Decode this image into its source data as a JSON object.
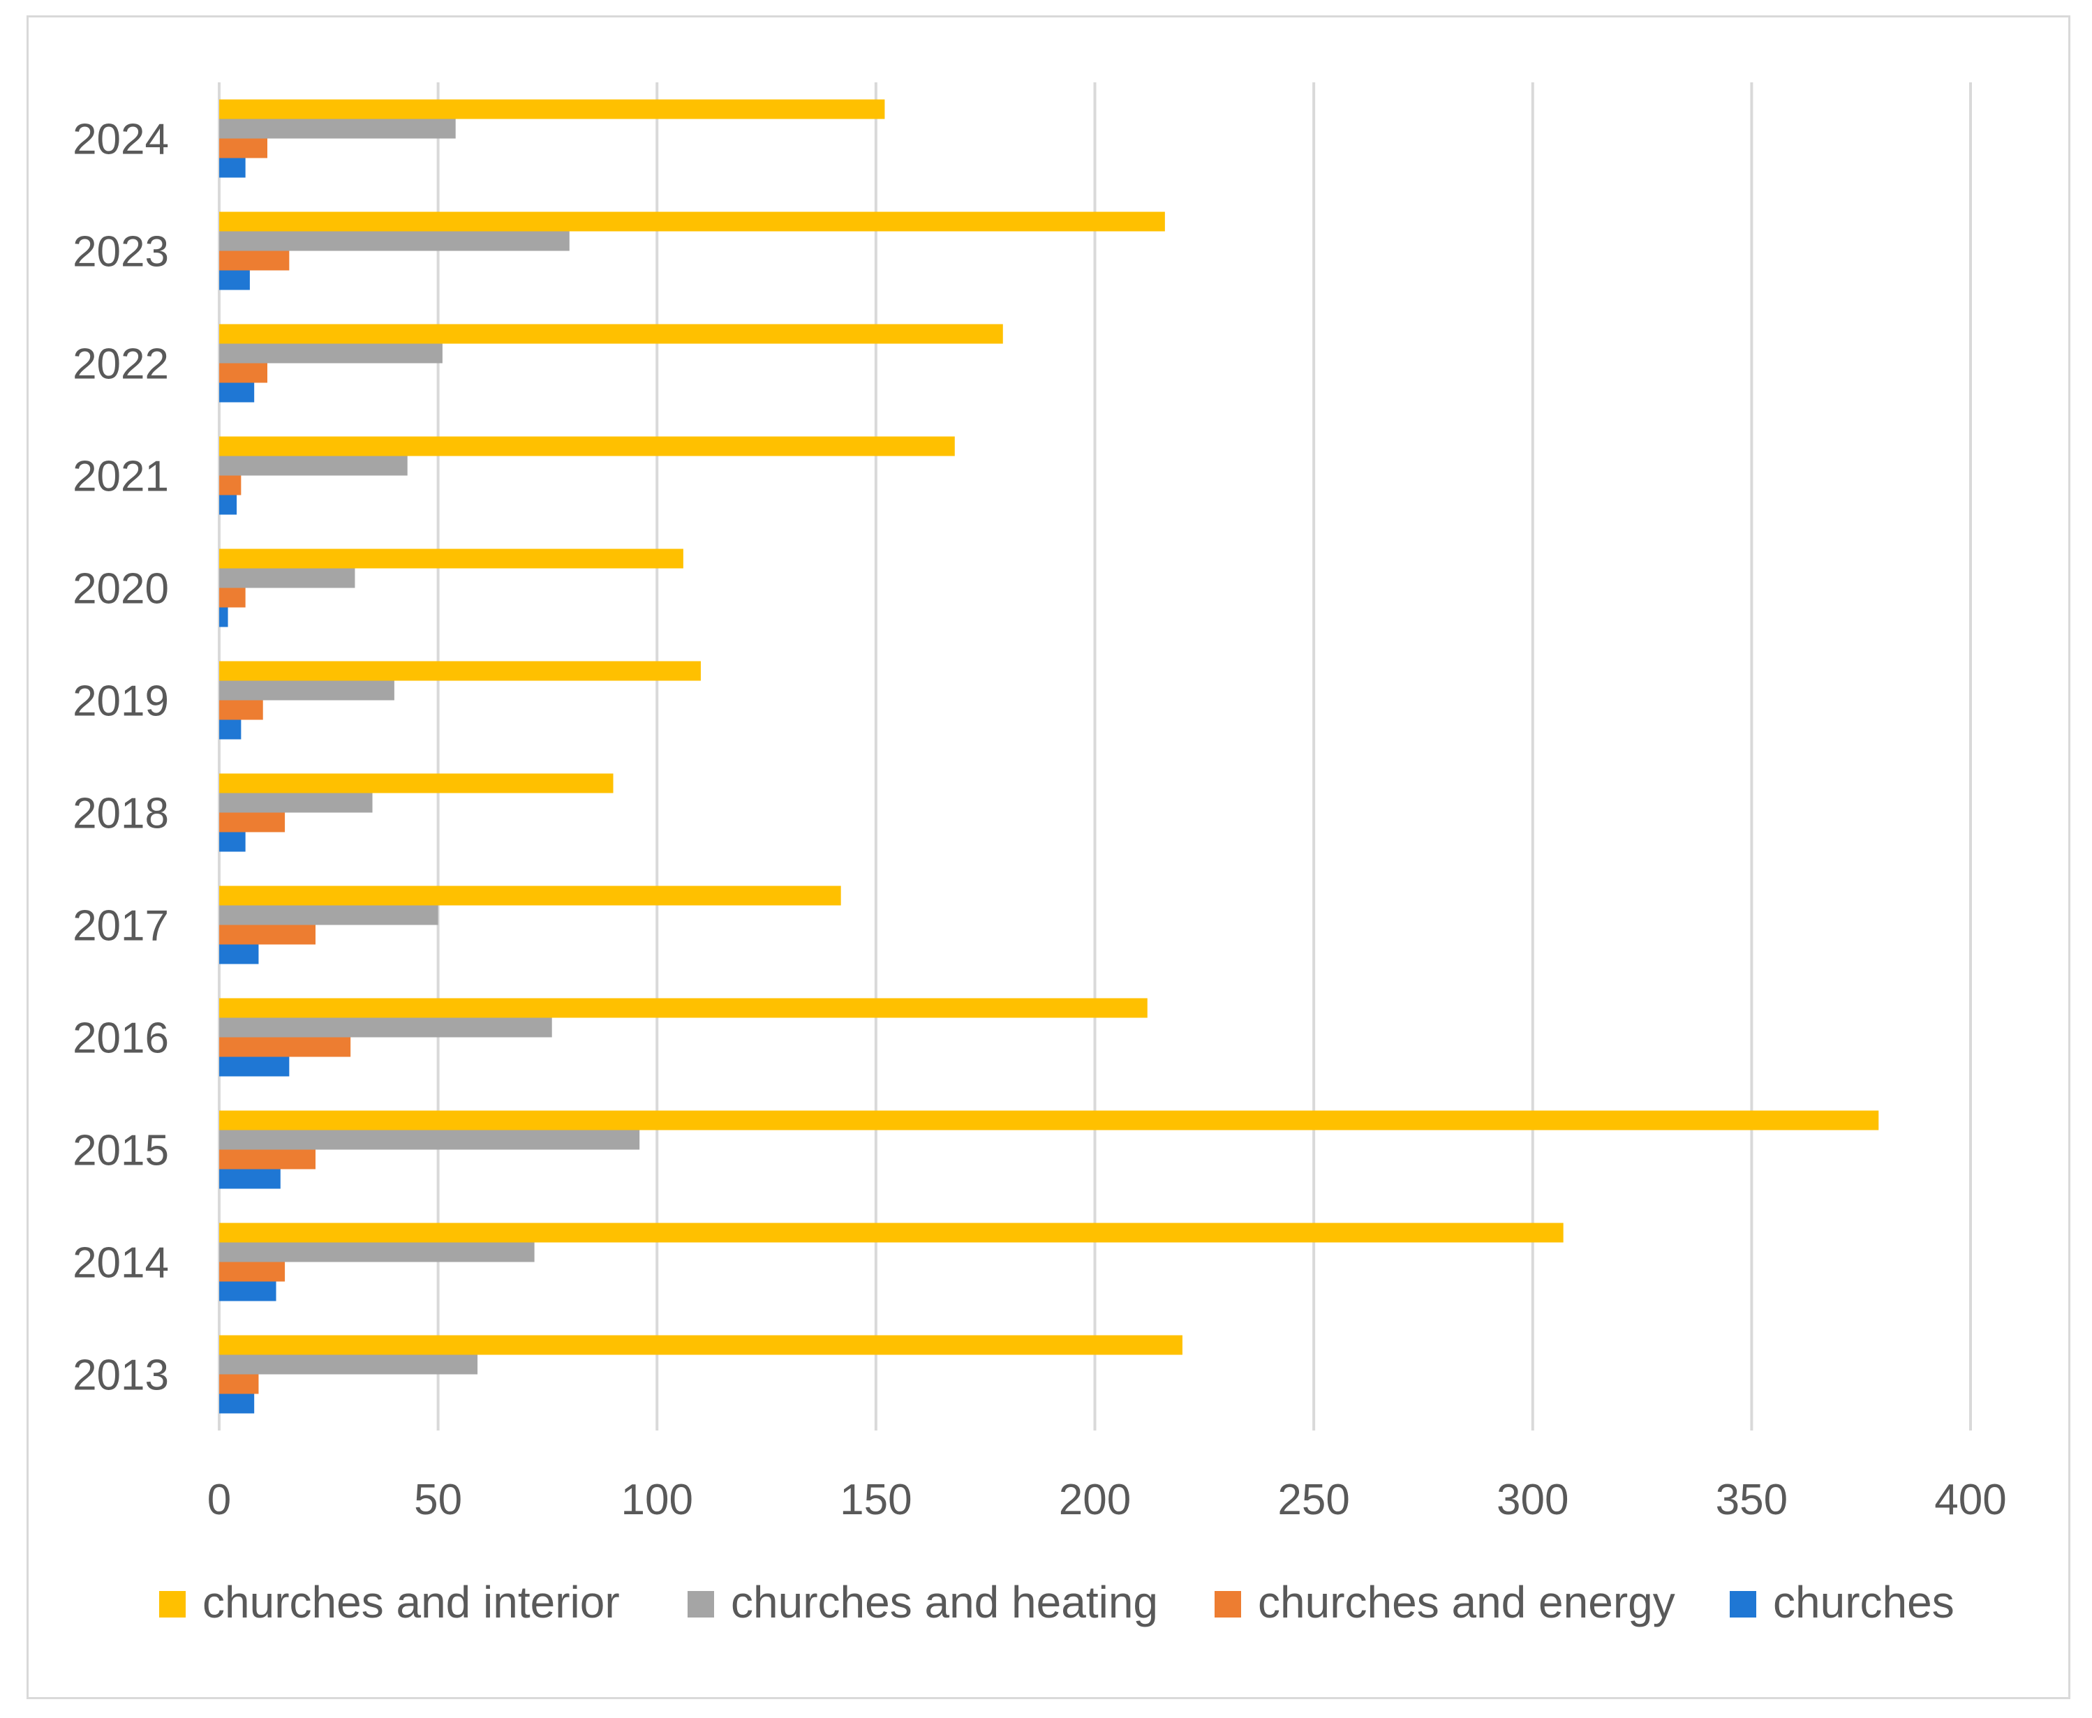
{
  "chart_data": {
    "type": "bar",
    "orientation": "horizontal",
    "title": "",
    "xlabel": "",
    "ylabel": "",
    "xlim": [
      0,
      400
    ],
    "x_ticks": [
      "0",
      "50",
      "100",
      "150",
      "200",
      "250",
      "300",
      "350",
      "400"
    ],
    "grid": true,
    "legend_position": "bottom",
    "categories": [
      "2013",
      "2014",
      "2015",
      "2016",
      "2017",
      "2018",
      "2019",
      "2020",
      "2021",
      "2022",
      "2023",
      "2024"
    ],
    "series": [
      {
        "name": "churches and interior",
        "color": "#ffc000",
        "values": [
          220,
          307,
          379,
          212,
          142,
          90,
          110,
          106,
          168,
          179,
          216,
          152
        ]
      },
      {
        "name": "churches and heating",
        "color": "#a5a5a5",
        "values": [
          59,
          72,
          96,
          76,
          50,
          35,
          40,
          31,
          43,
          51,
          80,
          54
        ]
      },
      {
        "name": "churches and energy",
        "color": "#ed7d31",
        "values": [
          9,
          15,
          22,
          30,
          22,
          15,
          10,
          6,
          5,
          11,
          16,
          11
        ]
      },
      {
        "name": "churches",
        "color": "#1f77d4",
        "values": [
          8,
          13,
          14,
          16,
          9,
          6,
          5,
          2,
          4,
          8,
          7,
          6
        ]
      }
    ]
  }
}
